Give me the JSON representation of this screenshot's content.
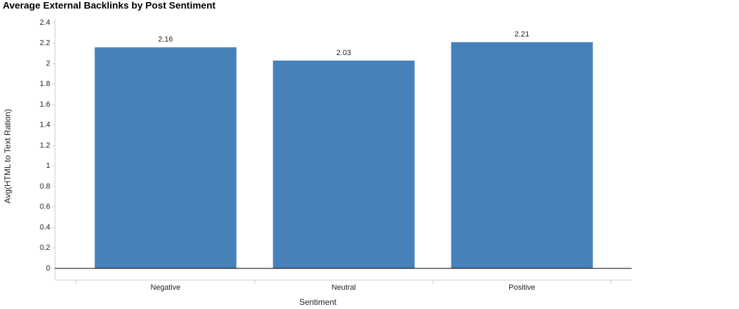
{
  "chart_data": {
    "type": "bar",
    "title": "Average External Backlinks by Post Sentiment",
    "x_label": "Sentiment",
    "y_label": "Avg(HTML to Text Ration)",
    "categories": [
      "Negative",
      "Neutral",
      "Positive"
    ],
    "values": [
      2.16,
      2.03,
      2.21
    ],
    "color": "#4682b9",
    "ylim": [
      0,
      2.4
    ],
    "yticks": [
      0,
      0.2,
      0.4,
      0.6,
      0.8,
      1,
      1.2,
      1.4,
      1.6,
      1.8,
      2,
      2.2,
      2.4
    ],
    "grid": false
  }
}
